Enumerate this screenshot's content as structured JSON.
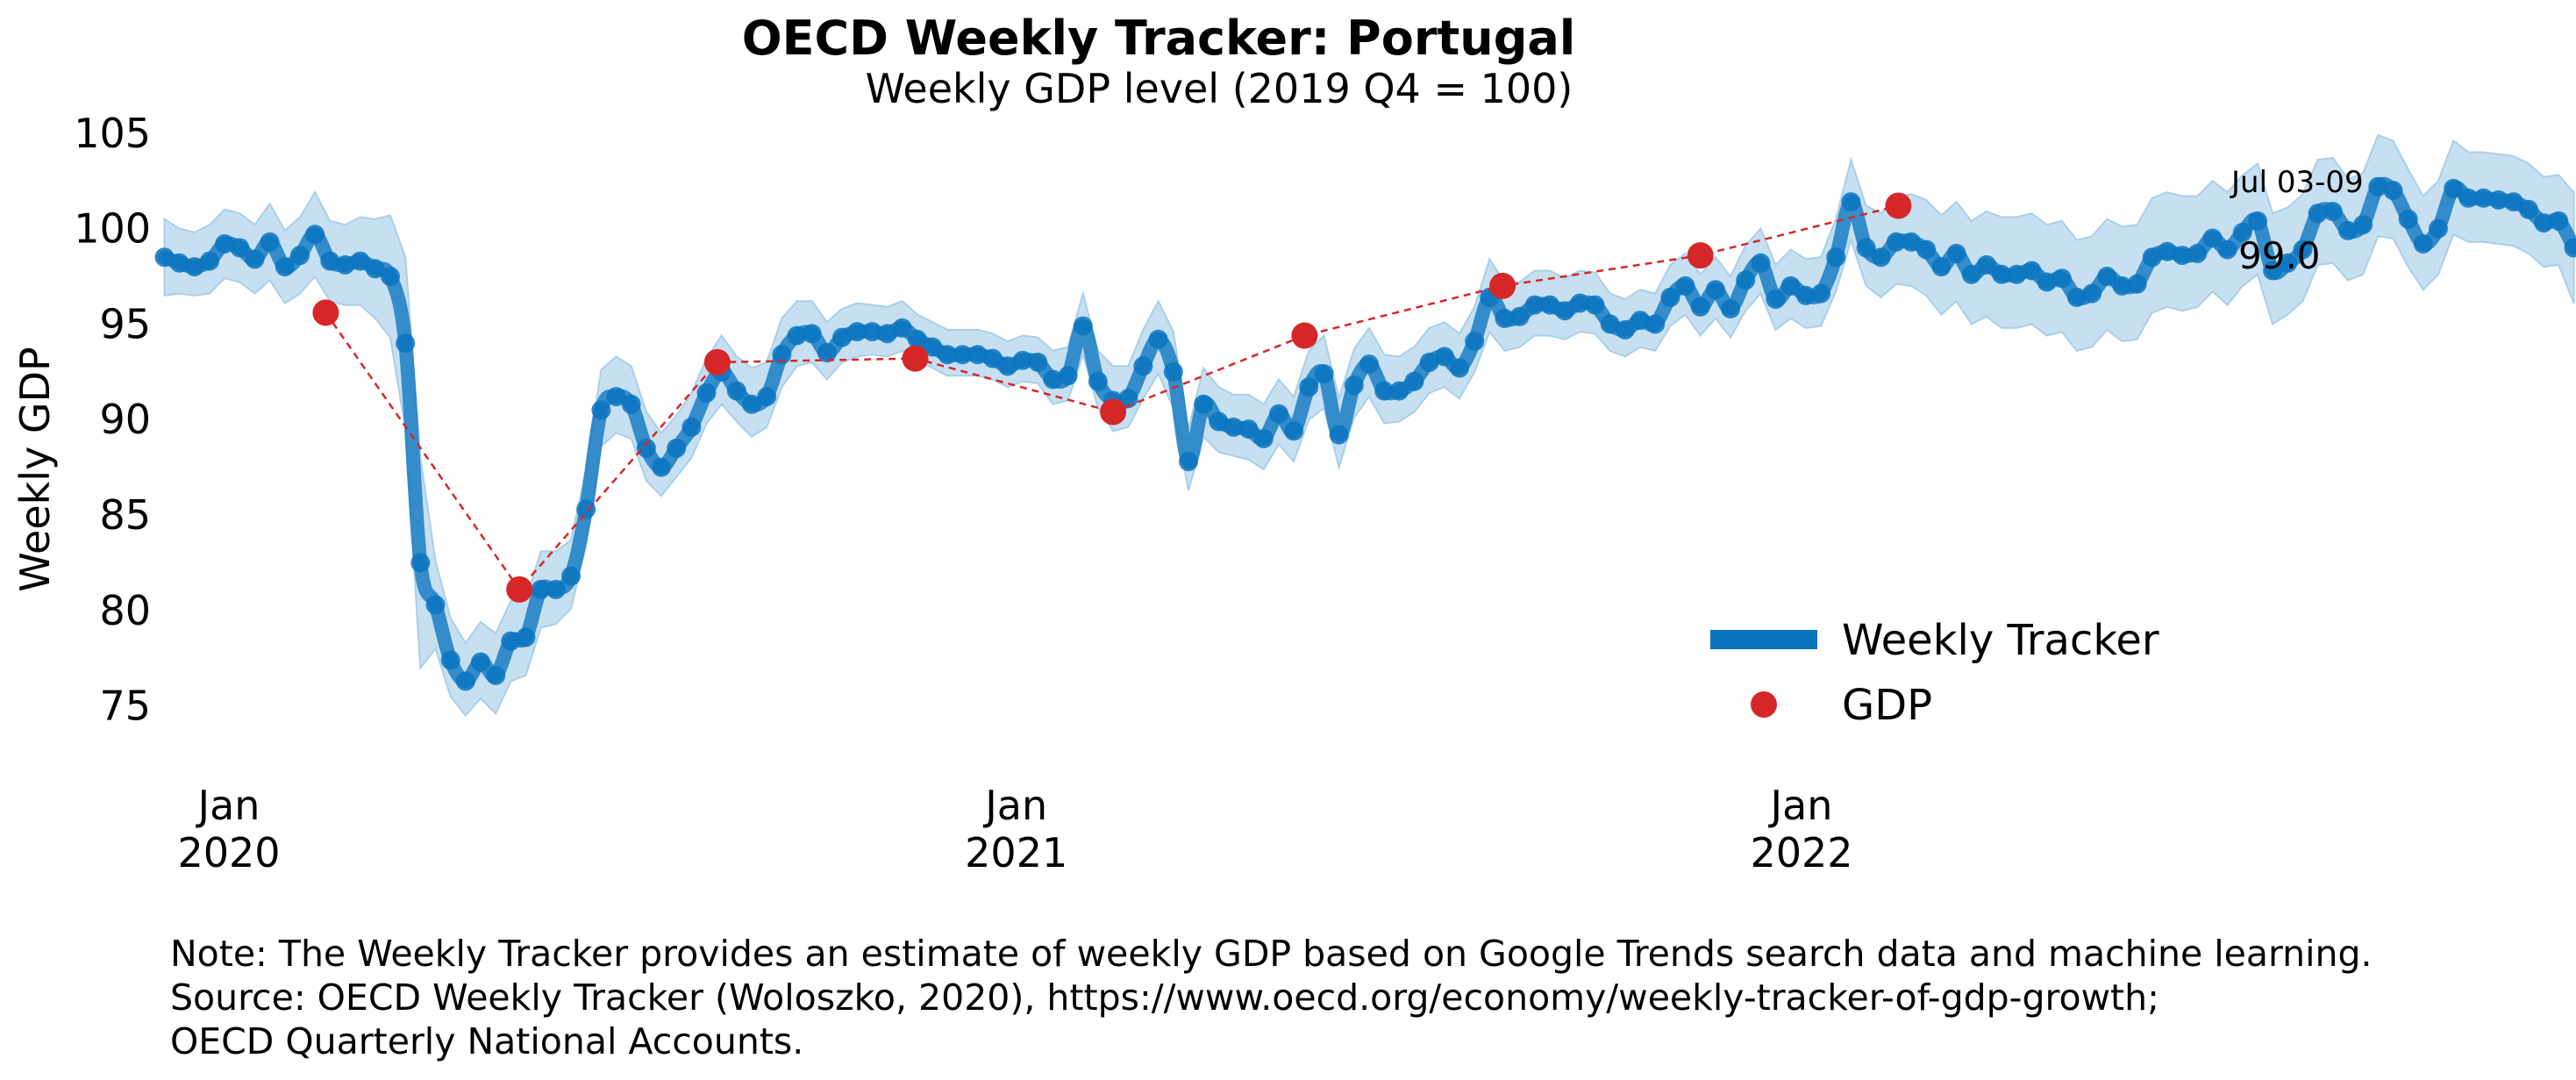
{
  "chart_data": {
    "type": "line",
    "title": "OECD Weekly Tracker: Portugal",
    "subtitle": "Weekly GDP level (2019 Q4 = 100)",
    "ylabel": "Weekly GDP",
    "xlabel": "",
    "ylim": [
      72,
      106
    ],
    "xlim": [
      "2019-12-01",
      "2022-07-10"
    ],
    "yticks": [
      75,
      80,
      85,
      90,
      95,
      100,
      105
    ],
    "xticks": [
      {
        "date": "2020-01-01",
        "line1": "Jan",
        "line2": "2020"
      },
      {
        "date": "2021-01-01",
        "line1": "Jan",
        "line2": "2021"
      },
      {
        "date": "2022-01-01",
        "line1": "Jan",
        "line2": "2022"
      }
    ],
    "grid": false,
    "legend_position": "lower-right",
    "colors": {
      "tracker": "#0a74bf",
      "band": "#a9cfe9",
      "gdp": "#d62728"
    },
    "series": [
      {
        "name": "Weekly Tracker",
        "start": "2019-12-02",
        "step_days": 7,
        "values": [
          98.5,
          98.2,
          98.0,
          98.3,
          99.2,
          99.0,
          98.4,
          99.3,
          98.0,
          98.6,
          99.7,
          98.3,
          98.1,
          98.3,
          97.9,
          97.5,
          94.0,
          82.5,
          80.3,
          77.4,
          76.3,
          77.3,
          76.6,
          78.4,
          78.6,
          81.1,
          81.1,
          81.8,
          85.3,
          90.5,
          91.2,
          90.8,
          88.5,
          87.5,
          88.5,
          89.6,
          91.4,
          92.5,
          91.5,
          90.8,
          91.2,
          93.4,
          94.4,
          94.5,
          93.5,
          94.3,
          94.6,
          94.6,
          94.5,
          94.8,
          94.2,
          93.8,
          93.4,
          93.4,
          93.4,
          93.2,
          92.8,
          93.1,
          93.0,
          92.1,
          92.3,
          94.9,
          92.0,
          91.0,
          91.1,
          92.8,
          94.2,
          92.5,
          87.8,
          90.8,
          89.9,
          89.6,
          89.5,
          89.0,
          90.3,
          89.4,
          91.7,
          92.4,
          89.2,
          91.8,
          92.9,
          91.5,
          91.5,
          92.0,
          93.0,
          93.3,
          92.7,
          94.1,
          96.4,
          95.3,
          95.4,
          96.0,
          96.0,
          95.7,
          96.1,
          96.0,
          95.0,
          94.7,
          95.2,
          95.0,
          96.4,
          97.0,
          95.9,
          96.8,
          95.8,
          97.3,
          98.2,
          96.3,
          97.0,
          96.5,
          96.6,
          98.5,
          101.4,
          99.0,
          98.5,
          99.3,
          99.3,
          98.9,
          98.0,
          98.7,
          97.6,
          98.1,
          97.6,
          97.6,
          97.8,
          97.2,
          97.4,
          96.4,
          96.6,
          97.5,
          97.0,
          97.1,
          98.5,
          98.8,
          98.6,
          98.7,
          99.5,
          98.9,
          99.8,
          100.4,
          97.8,
          98.2,
          98.9,
          100.8,
          100.9,
          99.9,
          100.2,
          102.2,
          102.0,
          100.5,
          99.2,
          100.0,
          102.1,
          101.6,
          101.6,
          101.5,
          101.4,
          101.0,
          100.3,
          100.4,
          99.0
        ],
        "lower": [
          96.5,
          96.6,
          96.5,
          96.6,
          97.4,
          97.2,
          96.6,
          97.3,
          96.1,
          96.6,
          97.5,
          96.2,
          96.0,
          96.0,
          95.3,
          94.3,
          89.5,
          77.0,
          78.0,
          75.5,
          74.5,
          75.4,
          74.6,
          76.3,
          76.6,
          79.1,
          79.3,
          80.1,
          83.4,
          88.6,
          89.3,
          89.0,
          86.8,
          86.0,
          87.0,
          88.0,
          89.8,
          90.8,
          89.9,
          89.1,
          89.6,
          91.7,
          92.8,
          93.0,
          92.1,
          93.0,
          93.3,
          93.4,
          93.3,
          93.6,
          93.1,
          92.7,
          92.3,
          92.3,
          92.3,
          92.1,
          91.7,
          92.0,
          91.9,
          90.8,
          91.0,
          93.4,
          90.6,
          89.4,
          89.6,
          91.1,
          92.4,
          90.6,
          86.3,
          89.1,
          88.3,
          88.1,
          87.9,
          87.4,
          88.7,
          87.8,
          90.0,
          90.6,
          87.5,
          90.1,
          91.2,
          89.8,
          89.9,
          90.4,
          91.4,
          91.7,
          91.1,
          92.5,
          94.6,
          93.6,
          93.8,
          94.4,
          94.4,
          94.2,
          94.6,
          94.5,
          93.6,
          93.3,
          93.8,
          93.6,
          94.9,
          95.5,
          94.4,
          95.3,
          94.3,
          95.7,
          96.6,
          94.7,
          95.3,
          94.8,
          94.9,
          96.7,
          99.4,
          97.0,
          96.4,
          97.1,
          97.0,
          96.5,
          95.5,
          96.2,
          95.0,
          95.4,
          94.8,
          94.8,
          95.0,
          94.4,
          94.6,
          93.6,
          93.8,
          94.7,
          94.1,
          94.2,
          95.6,
          95.9,
          95.7,
          95.9,
          96.7,
          96.0,
          97.0,
          97.6,
          95.0,
          95.5,
          96.2,
          98.1,
          98.2,
          97.3,
          97.6,
          99.6,
          99.5,
          98.0,
          96.8,
          97.6,
          99.7,
          99.3,
          99.3,
          99.2,
          99.1,
          98.7,
          98.0,
          98.1,
          96.1
        ],
        "upper": [
          100.5,
          100.0,
          99.8,
          100.2,
          101.0,
          100.8,
          100.2,
          101.3,
          99.9,
          100.6,
          101.9,
          100.4,
          100.2,
          100.6,
          100.5,
          100.7,
          98.5,
          88.0,
          82.6,
          79.6,
          78.3,
          79.4,
          78.8,
          80.5,
          80.6,
          83.1,
          83.1,
          83.7,
          87.4,
          92.6,
          93.3,
          92.8,
          90.4,
          89.3,
          90.2,
          91.4,
          93.2,
          94.4,
          93.3,
          92.7,
          93.0,
          95.3,
          96.2,
          96.2,
          95.1,
          95.8,
          96.1,
          96.0,
          95.9,
          96.2,
          95.5,
          95.1,
          94.7,
          94.7,
          94.7,
          94.5,
          94.1,
          94.4,
          94.3,
          93.6,
          93.8,
          96.6,
          93.6,
          92.8,
          92.8,
          94.7,
          96.2,
          94.6,
          89.5,
          92.7,
          91.7,
          91.3,
          91.3,
          90.8,
          92.1,
          91.2,
          93.6,
          94.4,
          91.1,
          93.7,
          94.8,
          93.4,
          93.3,
          93.8,
          94.8,
          95.1,
          94.5,
          95.9,
          98.4,
          97.2,
          97.2,
          97.8,
          97.8,
          97.4,
          97.8,
          97.7,
          96.6,
          96.3,
          96.8,
          96.6,
          98.1,
          98.7,
          97.6,
          98.5,
          97.5,
          99.1,
          100.0,
          98.1,
          98.9,
          98.4,
          98.5,
          100.5,
          103.6,
          101.2,
          100.8,
          101.7,
          101.8,
          101.5,
          100.7,
          101.4,
          100.4,
          100.9,
          100.6,
          100.6,
          100.8,
          100.2,
          100.4,
          99.4,
          99.6,
          100.5,
          100.1,
          100.2,
          101.6,
          101.9,
          101.7,
          101.7,
          102.5,
          101.9,
          102.8,
          103.4,
          100.8,
          101.1,
          101.8,
          103.6,
          103.7,
          102.6,
          102.9,
          104.9,
          104.6,
          103.1,
          101.7,
          102.5,
          104.6,
          104.0,
          104.0,
          103.9,
          103.8,
          103.4,
          102.7,
          102.8,
          101.9
        ]
      },
      {
        "name": "GDP",
        "points": [
          {
            "x": "2020-02-15",
            "y": 95.6
          },
          {
            "x": "2020-05-15",
            "y": 81.1
          },
          {
            "x": "2020-08-15",
            "y": 93.0
          },
          {
            "x": "2020-11-15",
            "y": 93.2
          },
          {
            "x": "2021-02-15",
            "y": 90.4
          },
          {
            "x": "2021-05-15",
            "y": 94.4
          },
          {
            "x": "2021-08-15",
            "y": 97.0
          },
          {
            "x": "2021-11-15",
            "y": 98.6
          },
          {
            "x": "2022-02-15",
            "y": 101.2
          }
        ]
      }
    ],
    "annotation": {
      "period": "Jul 03-09",
      "value": "99.0"
    }
  },
  "note": {
    "line1": "Note: The Weekly Tracker provides an estimate of weekly GDP based on Google Trends search data and machine learning.",
    "line2": "Source: OECD Weekly Tracker (Woloszko, 2020), https://www.oecd.org/economy/weekly-tracker-of-gdp-growth;",
    "line3": "OECD Quarterly National Accounts."
  }
}
